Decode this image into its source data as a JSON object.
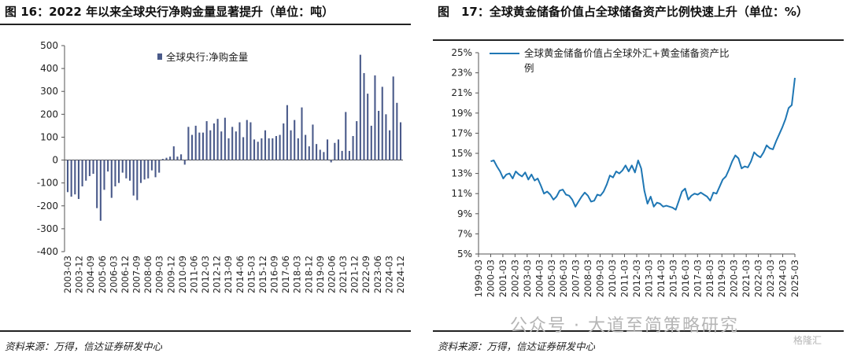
{
  "left": {
    "title": "图 16：2022 年以来全球央行净购金量显著提升（单位：吨）",
    "source": "资料来源：万得，信达证券研发中心"
  },
  "right": {
    "title": "图　17：全球黄金储备价值占全球储备资产比例快速上升（单位：%）",
    "source": "资料来源：万得，信达证券研发中心"
  },
  "watermark": "公众号 · 大道至简策略研究",
  "watermark_logo": "格隆汇",
  "colors": {
    "bar": "#4a5a8a",
    "line": "#1f77b4"
  },
  "chart_data": [
    {
      "type": "bar",
      "legend": "全球央行:净购金量",
      "legend_position": "top-center",
      "ylim": [
        -400,
        500
      ],
      "yticks": [
        -400,
        -300,
        -200,
        -100,
        0,
        100,
        200,
        300,
        400,
        500
      ],
      "xtick_labels": [
        "2003-03",
        "2003-12",
        "2004-09",
        "2005-06",
        "2006-03",
        "2006-12",
        "2007-09",
        "2008-06",
        "2009-03",
        "2009-12",
        "2010-09",
        "2011-06",
        "2012-03",
        "2012-12",
        "2013-09",
        "2014-06",
        "2015-03",
        "2015-12",
        "2016-09",
        "2017-06",
        "2018-03",
        "2018-12",
        "2019-09",
        "2020-06",
        "2021-03",
        "2021-12",
        "2022-09",
        "2023-06",
        "2024-03",
        "2024-12"
      ],
      "x_start": "2003-03",
      "x_end": "2024-12",
      "values": [
        -140,
        -160,
        -150,
        -170,
        -115,
        -90,
        -70,
        -60,
        -210,
        -265,
        -130,
        -50,
        -165,
        -115,
        -100,
        -55,
        -80,
        -90,
        -155,
        -175,
        -100,
        -85,
        -80,
        -45,
        -75,
        -55,
        5,
        10,
        15,
        60,
        15,
        25,
        -20,
        145,
        110,
        150,
        120,
        120,
        170,
        130,
        160,
        180,
        125,
        185,
        95,
        145,
        125,
        165,
        100,
        175,
        165,
        90,
        80,
        95,
        130,
        95,
        95,
        105,
        110,
        160,
        240,
        130,
        175,
        95,
        230,
        110,
        60,
        155,
        70,
        45,
        35,
        90,
        -10,
        75,
        90,
        40,
        210,
        40,
        105,
        170,
        460,
        380,
        290,
        150,
        370,
        215,
        320,
        200,
        130,
        365,
        250,
        165
      ],
      "grid": false
    },
    {
      "type": "line",
      "legend": "全球黄金储备价值占全球外汇+黄金储备资产比例",
      "legend_position": "top-left",
      "ylim": [
        5,
        25
      ],
      "yticks": [
        "5%",
        "7%",
        "9%",
        "11%",
        "13%",
        "15%",
        "17%",
        "19%",
        "21%",
        "23%",
        "25%"
      ],
      "xtick_labels": [
        "1999-03",
        "2000-03",
        "2001-03",
        "2002-03",
        "2003-03",
        "2004-03",
        "2005-03",
        "2006-03",
        "2007-03",
        "2008-03",
        "2009-03",
        "2010-03",
        "2011-03",
        "2012-03",
        "2013-03",
        "2014-03",
        "2015-03",
        "2016-03",
        "2017-03",
        "2018-03",
        "2019-03",
        "2020-03",
        "2021-03",
        "2022-03",
        "2023-03",
        "2024-03",
        "2025-03"
      ],
      "x_start": "2000-03",
      "x_end": "2025-03",
      "values": [
        14.2,
        14.3,
        13.7,
        13.2,
        12.5,
        12.9,
        13.0,
        12.5,
        13.2,
        12.9,
        12.7,
        13.1,
        12.4,
        12.9,
        12.3,
        12.5,
        11.8,
        11.0,
        11.2,
        10.9,
        10.4,
        10.7,
        11.3,
        11.4,
        10.9,
        10.8,
        10.4,
        9.7,
        10.2,
        10.7,
        11.1,
        10.8,
        10.2,
        10.3,
        10.9,
        10.8,
        11.2,
        11.9,
        12.8,
        12.6,
        13.2,
        13.0,
        13.3,
        13.8,
        13.2,
        13.8,
        13.1,
        14.3,
        13.5,
        11.3,
        10.0,
        10.7,
        9.7,
        10.1,
        10.0,
        9.7,
        9.8,
        9.7,
        9.6,
        9.4,
        10.3,
        11.2,
        11.5,
        10.4,
        10.8,
        11.0,
        10.9,
        11.1,
        10.9,
        10.7,
        10.3,
        11.1,
        11.0,
        11.7,
        12.4,
        12.7,
        13.4,
        14.2,
        14.8,
        14.5,
        13.5,
        13.7,
        13.6,
        14.2,
        15.1,
        14.8,
        14.6,
        15.1,
        15.8,
        15.5,
        15.4,
        16.2,
        16.9,
        17.6,
        18.4,
        19.5,
        19.8,
        22.5
      ],
      "grid": false
    }
  ]
}
